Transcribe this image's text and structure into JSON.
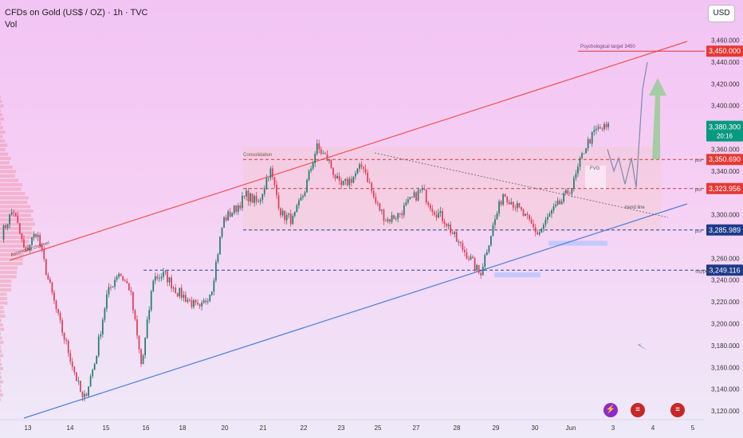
{
  "header": {
    "symbol_line": "CFDs on Gold (US$ / OZ) · 1h · TVC",
    "indicator": "Vol",
    "currency_button": "USD"
  },
  "colors": {
    "channel_top": "#ef5350",
    "channel_bottom": "#4a7ee0",
    "level_red": "#d23a3a",
    "level_blue": "#2244aa",
    "candle_up": "#26806e",
    "candle_down": "#e0405a",
    "price_badge": "#089981",
    "zone_fill": "#f3c27a",
    "box_fill": "#b8c4ff",
    "target_arrow": "#9ccc9c"
  },
  "chart_data": {
    "type": "candlestick",
    "title": "CFDs on Gold (US$ / OZ) · 1h · TVC",
    "ylim": [
      3112,
      3475
    ],
    "y_ticks": [
      3460,
      3440,
      3420,
      3400,
      3380,
      3360,
      3340,
      3300,
      3260,
      3240,
      3220,
      3200,
      3180,
      3160,
      3140,
      3120
    ],
    "x_ticks": [
      "13",
      "14",
      "15",
      "16",
      "18",
      "20",
      "21",
      "22",
      "23",
      "25",
      "27",
      "28",
      "29",
      "30",
      "Jun",
      "3",
      "4",
      "5"
    ],
    "price_anchors": [
      3282,
      3305,
      3265,
      3285,
      3240,
      3200,
      3165,
      3128,
      3165,
      3225,
      3248,
      3232,
      3160,
      3242,
      3245,
      3230,
      3222,
      3212,
      3232,
      3295,
      3305,
      3318,
      3310,
      3342,
      3300,
      3295,
      3323,
      3362,
      3350,
      3325,
      3333,
      3346,
      3312,
      3295,
      3300,
      3312,
      3323,
      3305,
      3295,
      3276,
      3262,
      3245,
      3285,
      3320,
      3309,
      3296,
      3282,
      3300,
      3312,
      3328,
      3362,
      3378,
      3380
    ],
    "last_price": "3,380.300",
    "countdown": "20:16",
    "levels": [
      {
        "name": "Psychological target 3450",
        "value": 3450,
        "label": "3,450.000",
        "style": "solid"
      },
      {
        "name": "poi",
        "value": 3350.69,
        "label": "3,350.690",
        "style": "dashed"
      },
      {
        "name": "poi",
        "value": 3323.956,
        "label": "3,323.956",
        "style": "dashed"
      },
      {
        "name": "poi",
        "value": 3285.989,
        "label": "3,285.989",
        "style": "dashed"
      },
      {
        "name": "support",
        "value": 3249.116,
        "label": "3,249.116",
        "style": "dashed"
      }
    ],
    "annotations": [
      "Ascending channel",
      "Consolidation",
      "FVG",
      "trend line",
      "Psychological target 3450"
    ]
  }
}
